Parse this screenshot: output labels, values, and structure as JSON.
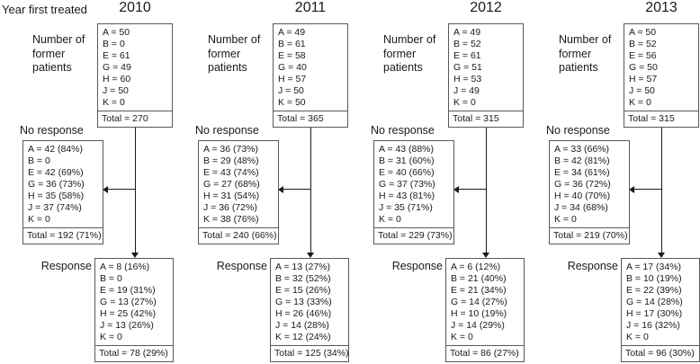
{
  "page_label": "Year first treated",
  "colors": {
    "border": "#595959",
    "ink": "#1a1a1a",
    "background": "#ffffff"
  },
  "columns": [
    {
      "year": "2010",
      "patients": {
        "label": "Number of former patients",
        "lines": [
          "A = 50",
          "B = 0",
          "E = 61",
          "G = 49",
          "H = 60",
          "J = 50",
          "K = 0"
        ],
        "total": "Total = 270"
      },
      "no_response": {
        "label": "No response",
        "lines": [
          "A = 42 (84%)",
          "B = 0",
          "E = 42 (69%)",
          "G = 36 (73%)",
          "H = 35 (58%)",
          "J = 37 (74%)",
          "K = 0"
        ],
        "total": "Total = 192 (71%)"
      },
      "response": {
        "label": "Response",
        "lines": [
          "A = 8 (16%)",
          "B = 0",
          "E = 19 (31%)",
          "G = 13 (27%)",
          "H = 25 (42%)",
          "J = 13 (26%)",
          "K = 0"
        ],
        "total": "Total = 78 (29%)"
      }
    },
    {
      "year": "2011",
      "patients": {
        "label": "Number of former patients",
        "lines": [
          "A = 49",
          "B = 61",
          "E = 58",
          "G = 40",
          "H = 57",
          "J = 50",
          "K = 50"
        ],
        "total": "Total = 365"
      },
      "no_response": {
        "label": "No response",
        "lines": [
          "A = 36 (73%)",
          "B = 29 (48%)",
          "E = 43 (74%)",
          "G = 27 (68%)",
          "H = 31 (54%)",
          "J = 36 (72%)",
          "K = 38 (76%)"
        ],
        "total": "Total = 240 (66%)"
      },
      "response": {
        "label": "Response",
        "lines": [
          "A = 13 (27%)",
          "B = 32 (52%)",
          "E = 15 (26%)",
          "G = 13 (33%)",
          "H = 26 (46%)",
          "J = 14 (28%)",
          "K = 12 (24%)"
        ],
        "total": "Total = 125 (34%)"
      }
    },
    {
      "year": "2012",
      "patients": {
        "label": "Number of former patients",
        "lines": [
          "A = 49",
          "B = 52",
          "E = 61",
          "G = 51",
          "H = 53",
          "J = 49",
          "K = 0"
        ],
        "total": "Total = 315"
      },
      "no_response": {
        "label": "No response",
        "lines": [
          "A = 43 (88%)",
          "B = 31 (60%)",
          "E = 40 (66%)",
          "G = 37 (73%)",
          "H = 43 (81%)",
          "J = 35 (71%)",
          "K = 0"
        ],
        "total": "Total = 229 (73%)"
      },
      "response": {
        "label": "Response",
        "lines": [
          "A = 6 (12%)",
          "B = 21 (40%)",
          "E = 21 (34%)",
          "G = 14 (27%)",
          "H = 10 (19%)",
          "J = 14 (29%)",
          "K = 0"
        ],
        "total": "Total = 86 (27%)"
      }
    },
    {
      "year": "2013",
      "patients": {
        "label": "Number of former patients",
        "lines": [
          "A = 50",
          "B = 52",
          "E = 56",
          "G = 50",
          "H = 57",
          "J = 50",
          "K = 0"
        ],
        "total": "Total = 315"
      },
      "no_response": {
        "label": "No response",
        "lines": [
          "A = 33 (66%)",
          "B = 42 (81%)",
          "E = 34 (61%)",
          "G = 36 (72%)",
          "H = 40 (70%)",
          "J = 34 (68%)",
          "K = 0"
        ],
        "total": "Total = 219 (70%)"
      },
      "response": {
        "label": "Response",
        "lines": [
          "A = 17 (34%)",
          "B = 10 (19%)",
          "E = 22 (39%)",
          "G = 14 (28%)",
          "H = 17 (30%)",
          "J = 16 (32%)",
          "K = 0"
        ],
        "total": "Total = 96 (30%)"
      }
    }
  ]
}
